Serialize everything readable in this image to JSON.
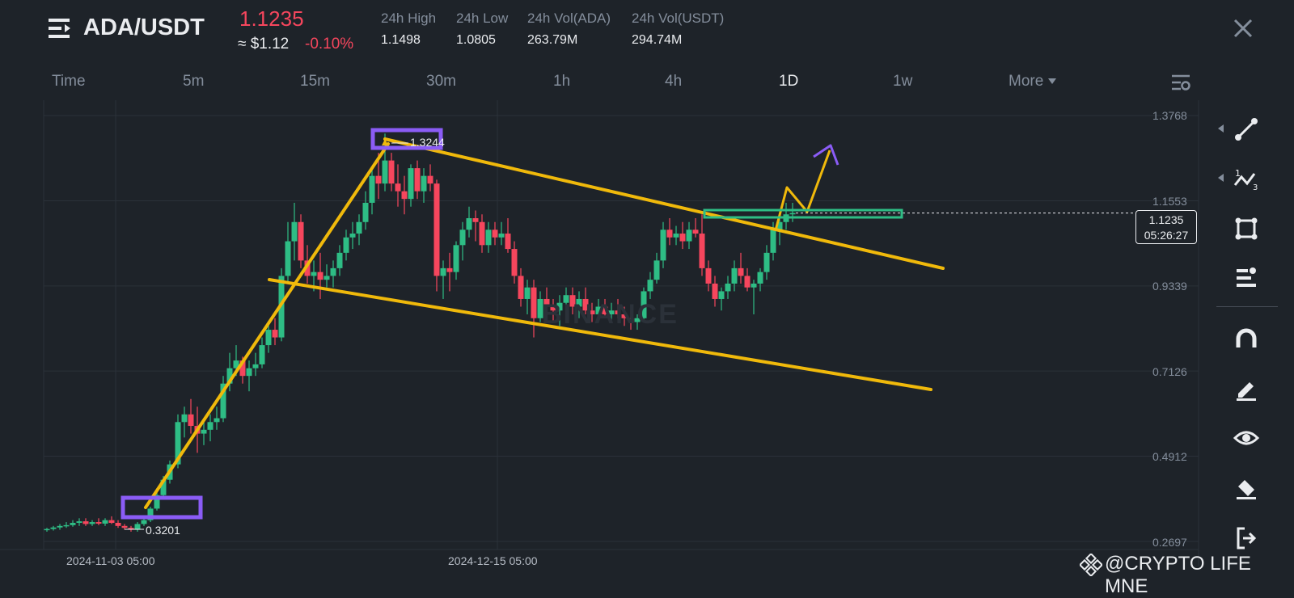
{
  "header": {
    "pair": "ADA/USDT",
    "last_price": "1.1235",
    "approx_usd": "≈ $1.12",
    "change_pct": "-0.10%",
    "stats": [
      {
        "label": "24h High",
        "value": "1.1498"
      },
      {
        "label": "24h Low",
        "value": "1.0805"
      },
      {
        "label": "24h Vol(ADA)",
        "value": "263.79M"
      },
      {
        "label": "24h Vol(USDT)",
        "value": "294.74M"
      }
    ]
  },
  "tabs": [
    "Time",
    "5m",
    "15m",
    "30m",
    "1h",
    "4h",
    "1D",
    "1w",
    "More"
  ],
  "active_tab": "1D",
  "chart": {
    "price_axis": [
      "1.3768",
      "1.1553",
      "0.9339",
      "0.7126",
      "0.4912",
      "0.2697"
    ],
    "date_axis": [
      "2024-11-03 05:00",
      "2024-12-15 05:00"
    ],
    "current_price": "1.1235",
    "countdown": "05:26:27",
    "high_marker": "1.3244",
    "low_marker": "0.3201",
    "platform_watermark": "BINANCE"
  },
  "watermark": "@CRYPTO LIFE MNE",
  "colors": {
    "background": "#1e2329",
    "up": "#2ebd85",
    "down": "#f6465d",
    "trendline": "#f0b90b",
    "highlight_box": "#8b5cf6",
    "zone_box": "#2ebd85",
    "text_secondary": "#848e9c"
  },
  "toolbar_icons": [
    "trend-line-icon",
    "fib-icon",
    "rectangle-icon",
    "text-tool-icon",
    "magnet-icon",
    "pencil-icon",
    "eye-icon",
    "eraser-icon",
    "exit-icon"
  ]
}
